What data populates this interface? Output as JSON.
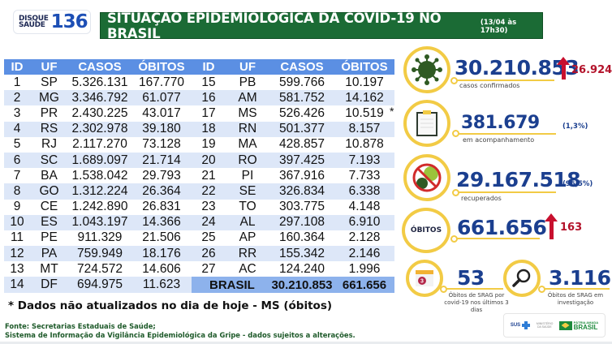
{
  "header": {
    "logo_line1": "DISQUE",
    "logo_line2": "SAÚDE",
    "logo_number": "136",
    "title": "SITUAÇÃO EPIDEMIOLÓGICA DA COVID-19 NO BRASIL",
    "date": "(13/04 às 17h30)"
  },
  "table": {
    "columns": [
      "ID",
      "UF",
      "CASOS",
      "ÓBITOS"
    ],
    "left_rows": [
      {
        "id": "1",
        "uf": "SP",
        "casos": "5.326.131",
        "obitos": "167.770"
      },
      {
        "id": "2",
        "uf": "MG",
        "casos": "3.346.792",
        "obitos": "61.077"
      },
      {
        "id": "3",
        "uf": "PR",
        "casos": "2.430.225",
        "obitos": "43.017"
      },
      {
        "id": "4",
        "uf": "RS",
        "casos": "2.302.978",
        "obitos": "39.180"
      },
      {
        "id": "5",
        "uf": "RJ",
        "casos": "2.117.270",
        "obitos": "73.128"
      },
      {
        "id": "6",
        "uf": "SC",
        "casos": "1.689.097",
        "obitos": "21.714"
      },
      {
        "id": "7",
        "uf": "BA",
        "casos": "1.538.042",
        "obitos": "29.793"
      },
      {
        "id": "8",
        "uf": "GO",
        "casos": "1.312.224",
        "obitos": "26.364"
      },
      {
        "id": "9",
        "uf": "CE",
        "casos": "1.242.890",
        "obitos": "26.831"
      },
      {
        "id": "10",
        "uf": "ES",
        "casos": "1.043.197",
        "obitos": "14.366"
      },
      {
        "id": "11",
        "uf": "PE",
        "casos": "911.329",
        "obitos": "21.506"
      },
      {
        "id": "12",
        "uf": "PA",
        "casos": "759.949",
        "obitos": "18.176"
      },
      {
        "id": "13",
        "uf": "MT",
        "casos": "724.572",
        "obitos": "14.606"
      },
      {
        "id": "14",
        "uf": "DF",
        "casos": "694.975",
        "obitos": "11.623"
      }
    ],
    "right_rows": [
      {
        "id": "15",
        "uf": "PB",
        "casos": "599.766",
        "obitos": "10.197"
      },
      {
        "id": "16",
        "uf": "AM",
        "casos": "581.752",
        "obitos": "14.162"
      },
      {
        "id": "17",
        "uf": "MS",
        "casos": "526.426",
        "obitos": "10.519"
      },
      {
        "id": "18",
        "uf": "RN",
        "casos": "501.377",
        "obitos": "8.157"
      },
      {
        "id": "19",
        "uf": "MA",
        "casos": "428.857",
        "obitos": "10.878"
      },
      {
        "id": "20",
        "uf": "RO",
        "casos": "397.425",
        "obitos": "7.193"
      },
      {
        "id": "21",
        "uf": "PI",
        "casos": "367.916",
        "obitos": "7.733"
      },
      {
        "id": "22",
        "uf": "SE",
        "casos": "326.834",
        "obitos": "6.338"
      },
      {
        "id": "23",
        "uf": "TO",
        "casos": "303.775",
        "obitos": "4.148"
      },
      {
        "id": "24",
        "uf": "AL",
        "casos": "297.108",
        "obitos": "6.910"
      },
      {
        "id": "25",
        "uf": "AP",
        "casos": "160.364",
        "obitos": "2.128"
      },
      {
        "id": "26",
        "uf": "RR",
        "casos": "155.342",
        "obitos": "2.146"
      },
      {
        "id": "27",
        "uf": "AC",
        "casos": "124.240",
        "obitos": "1.996"
      }
    ],
    "total": {
      "label": "BRASIL",
      "casos": "30.210.853",
      "obitos": "661.656"
    },
    "asterisk": "*"
  },
  "stats": {
    "confirmed": {
      "value": "30.210.853",
      "label": "casos confirmados",
      "delta": "26.924",
      "icon": "virus-icon"
    },
    "monitoring": {
      "value": "381.679",
      "label": "em acompanhamento",
      "pct": "(1,3%)",
      "icon": "clipboard-icon"
    },
    "recovered": {
      "value": "29.167.518",
      "label": "recuperados",
      "pct": "(96,5%)",
      "icon": "no-virus-icon"
    },
    "deaths": {
      "badge": "ÓBITOS",
      "value": "661.656",
      "delta": "163"
    },
    "srag_recent": {
      "value": "53",
      "label": "Óbitos de SRAG por covid-19 nos últimos 3 dias",
      "calendar_number": "3",
      "icon": "calendar-icon"
    },
    "srag_investigation": {
      "value": "3.116",
      "label": "Óbitos de SRAG em investigação",
      "icon": "magnifier-icon"
    }
  },
  "colors": {
    "header_green": "#1b6b35",
    "table_header_blue": "#5b8fe3",
    "row_alt": "#dde7f8",
    "accent_yellow": "#f2cb45",
    "number_blue": "#1b3f8f",
    "delta_red": "#c8102e"
  },
  "footer": {
    "note": "* Dados não atualizados no dia de hoje - MS (óbitos)",
    "source_line1": "Fonte: Secretarias Estaduais de Saúde;",
    "source_line2": "Sistema de Informação da Vigilância Epidemiológica da Gripe - dados sujeitos a alterações.",
    "logos": {
      "sus": "SUS",
      "ministry": "MINISTÉRIO DA SAÚDE",
      "gov_top": "PÁTRIA AMADA",
      "gov_bottom": "BRASIL"
    }
  }
}
